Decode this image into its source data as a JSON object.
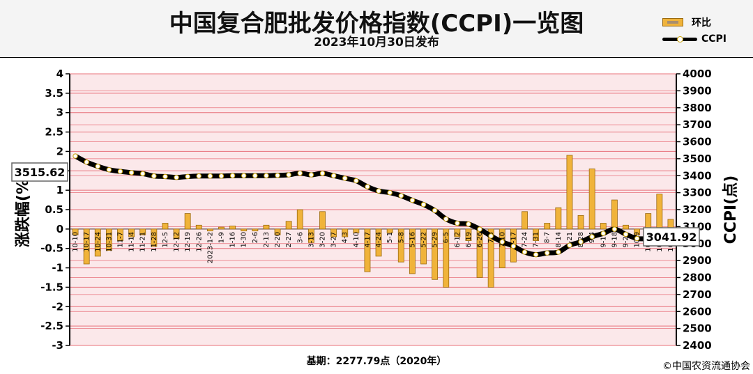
{
  "header": {
    "title": "中国复合肥批发价格指数(CCPI)一览图",
    "subtitle": "2023年10月30日发布"
  },
  "legend": [
    {
      "label": "环比",
      "kind": "bar"
    },
    {
      "label": "CCPI",
      "kind": "line"
    }
  ],
  "footer": {
    "base": "基期：2277.79点（2020年）",
    "copyright": "©中国农资流通协会"
  },
  "colors": {
    "bar_fill": "#f0b33a",
    "bar_edge": "#9a6a10",
    "grid_line": "#e8707a",
    "grid_band": "#fbe8ea",
    "line": "#000000",
    "marker_fill": "#ffffff",
    "marker_edge": "#c9a000"
  },
  "chart_data": {
    "type": "bar",
    "title": "中国复合肥批发价格指数(CCPI)一览图",
    "ylabel": "涨跌幅(%)",
    "y2label": "CCPI(点)",
    "ylim": [
      -3,
      4
    ],
    "y2lim": [
      2400,
      4000
    ],
    "yticks": [
      "4",
      "3.5",
      "3",
      "2.5",
      "2",
      "1.5",
      "1",
      "0.5",
      "0",
      "-0.5",
      "-1",
      "-1.5",
      "-2",
      "-2.5",
      "-3"
    ],
    "y2ticks": [
      "4000",
      "3900",
      "3800",
      "3700",
      "3600",
      "3500",
      "3400",
      "3300",
      "3200",
      "3100",
      "3000",
      "2900",
      "2800",
      "2700",
      "2600",
      "2500",
      "2400"
    ],
    "grid": true,
    "categories": [
      "10-10",
      "10-17",
      "10-24",
      "10-31",
      "11-7",
      "11-14",
      "11-21",
      "11-28",
      "12-5",
      "12-12",
      "12-19",
      "12-26",
      "2023-1-2",
      "1-9",
      "1-16",
      "1-30",
      "2-6",
      "2-13",
      "2-20",
      "2-27",
      "3-6",
      "3-13",
      "3-20",
      "3-27",
      "4-3",
      "4-10",
      "4-17",
      "4-24",
      "5-1",
      "5-8",
      "5-16",
      "5-22",
      "5-29",
      "6-5",
      "6-12",
      "6-19",
      "6-26",
      "7-3",
      "7-10",
      "7-17",
      "7-24",
      "7-31",
      "8-7",
      "8-14",
      "8-21",
      "8-28",
      "9-4",
      "9-11",
      "9-18",
      "9-25",
      "10-9",
      "10-16",
      "10-23",
      "10-30"
    ],
    "series": [
      {
        "name": "环比",
        "type": "bar",
        "values": [
          -0.15,
          -0.9,
          -0.7,
          -0.55,
          -0.3,
          -0.2,
          -0.15,
          -0.45,
          0.15,
          -0.25,
          0.4,
          0.1,
          -0.05,
          0.05,
          0.08,
          -0.05,
          -0.05,
          0.1,
          -0.15,
          0.2,
          0.5,
          -0.35,
          0.45,
          -0.2,
          -0.2,
          -0.1,
          -1.1,
          -0.7,
          -0.1,
          -0.85,
          -1.15,
          -0.9,
          -1.3,
          -1.5,
          -0.2,
          -0.3,
          -1.25,
          -1.5,
          -1.0,
          -0.85,
          0.45,
          -0.3,
          0.15,
          0.55,
          1.9,
          0.35,
          1.55,
          0.15,
          0.75,
          0.1,
          -0.15,
          0.4,
          0.9,
          0.25
        ]
      },
      {
        "name": "CCPI",
        "type": "line",
        "axis": "right",
        "values": [
          3515.62,
          3480,
          3455,
          3435,
          3425,
          3418,
          3412,
          3398,
          3395,
          3390,
          3395,
          3398,
          3398,
          3398,
          3400,
          3400,
          3400,
          3400,
          3402,
          3405,
          3415,
          3405,
          3414,
          3400,
          3385,
          3370,
          3335,
          3310,
          3300,
          3282,
          3255,
          3230,
          3195,
          3145,
          3120,
          3115,
          3085,
          3045,
          3010,
          2985,
          2950,
          2935,
          2945,
          2950,
          2990,
          3010,
          3040,
          3060,
          3085,
          3055,
          3030,
          3030,
          3040,
          3041.92
        ]
      }
    ],
    "annotations": {
      "first_value": "3515.62",
      "last_value": "3041.92"
    }
  }
}
